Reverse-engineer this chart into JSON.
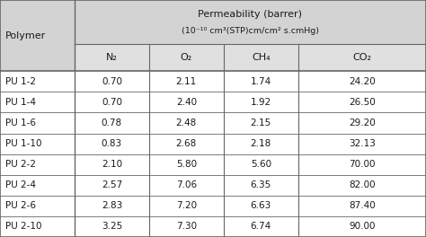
{
  "title_line1": "Permeability (barrer)",
  "title_line2": "(10⁻¹⁰ cm³(STP)cm/cm² s.cmHg)",
  "col_header_polymer": "Polymer",
  "col_headers": [
    "N₂",
    "O₂",
    "CH₄",
    "CO₂"
  ],
  "polymers": [
    "PU 1-2",
    "PU 1-4",
    "PU 1-6",
    "PU 1-10",
    "PU 2-2",
    "PU 2-4",
    "PU 2-6",
    "PU 2-10"
  ],
  "data": [
    [
      "0.70",
      "2.11",
      "1.74",
      "24.20"
    ],
    [
      "0.70",
      "2.40",
      "1.92",
      "26.50"
    ],
    [
      "0.78",
      "2.48",
      "2.15",
      "29.20"
    ],
    [
      "0.83",
      "2.68",
      "2.18",
      "32.13"
    ],
    [
      "2.10",
      "5.80",
      "5.60",
      "70.00"
    ],
    [
      "2.57",
      "7.06",
      "6.35",
      "82.00"
    ],
    [
      "2.83",
      "7.20",
      "6.63",
      "87.40"
    ],
    [
      "3.25",
      "7.30",
      "6.74",
      "90.00"
    ]
  ],
  "bg_header": "#d3d3d3",
  "bg_subheader": "#e0e0e0",
  "bg_data": "#ffffff",
  "text_color": "#1a1a1a",
  "line_color": "#666666",
  "figsize": [
    4.74,
    2.64
  ],
  "dpi": 100
}
